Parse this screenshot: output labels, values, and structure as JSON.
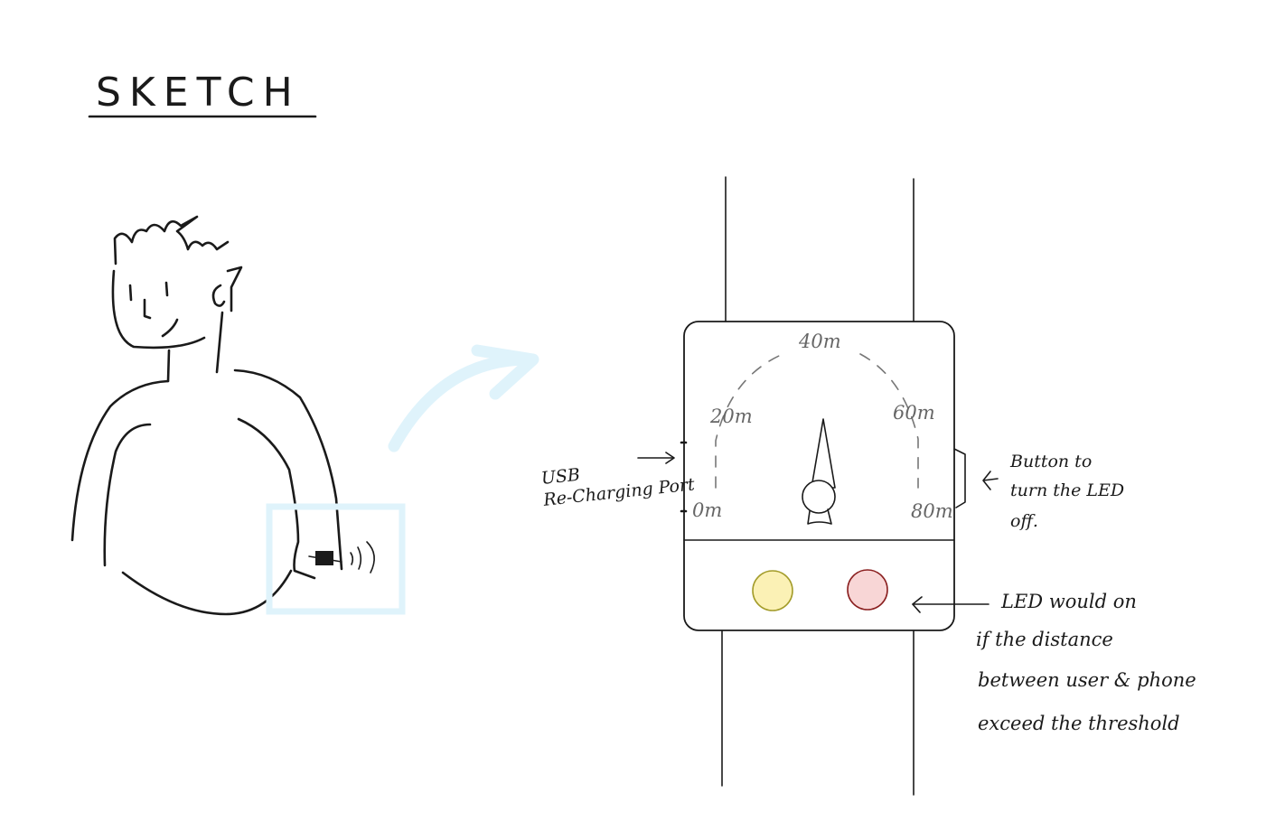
{
  "title": "SKETCH",
  "dial": {
    "labels": [
      "0m",
      "20m",
      "40m",
      "60m",
      "80m"
    ]
  },
  "annotations": {
    "usb": [
      "USB",
      "Re-Charging Port"
    ],
    "button": [
      "Button to",
      "turn the LED",
      "off."
    ],
    "led": [
      "LED would on",
      "if the distance",
      "between user & phone",
      "exceed the threshold"
    ]
  },
  "colors": {
    "highlight": "#dff3fb",
    "led_yellow": "#fbf1b5",
    "led_yellow_stroke": "#a39c2a",
    "led_red": "#f8d6d6",
    "led_red_stroke": "#8a1f1f"
  }
}
